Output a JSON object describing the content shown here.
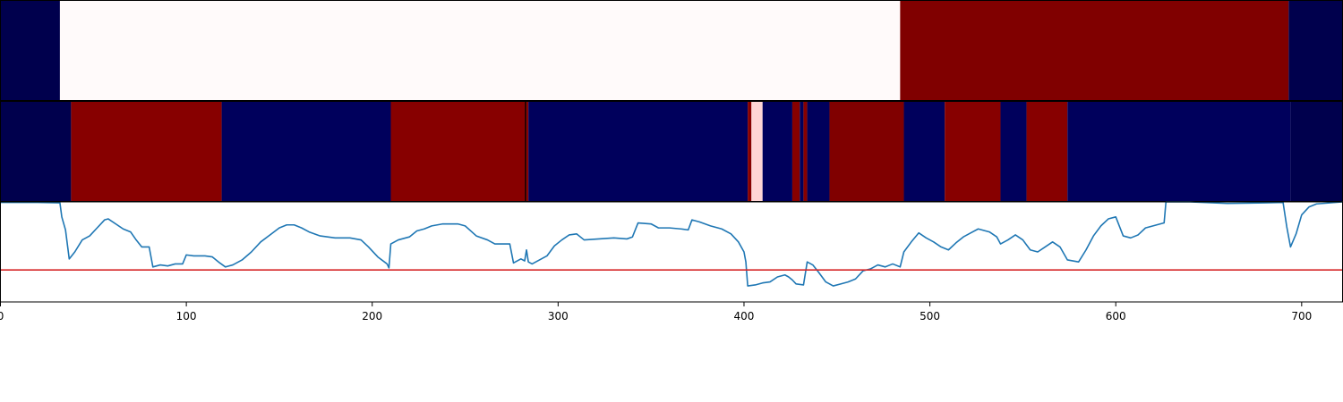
{
  "chart_data": [
    {
      "type": "heatmap",
      "xlim": [
        0,
        722
      ],
      "colormap": "seismic",
      "segments": [
        {
          "start": 0,
          "end": 32,
          "color": "#00004d"
        },
        {
          "start": 32,
          "end": 484,
          "color": "#fffafa"
        },
        {
          "start": 484,
          "end": 693,
          "color": "#800000"
        },
        {
          "start": 693,
          "end": 722,
          "color": "#00004d"
        }
      ]
    },
    {
      "type": "heatmap",
      "xlim": [
        0,
        722
      ],
      "colormap": "seismic",
      "segments": [
        {
          "start": 0,
          "end": 38,
          "color": "#00004d"
        },
        {
          "start": 38,
          "end": 119,
          "color": "#870000"
        },
        {
          "start": 119,
          "end": 210,
          "color": "#00005c"
        },
        {
          "start": 210,
          "end": 282,
          "color": "#870000"
        },
        {
          "start": 282,
          "end": 283,
          "color": "#2a0000"
        },
        {
          "start": 283,
          "end": 284,
          "color": "#870000"
        },
        {
          "start": 284,
          "end": 402,
          "color": "#00005c"
        },
        {
          "start": 402,
          "end": 404,
          "color": "#870000"
        },
        {
          "start": 404,
          "end": 410,
          "color": "#ffd5d5"
        },
        {
          "start": 410,
          "end": 426,
          "color": "#00005c"
        },
        {
          "start": 426,
          "end": 430,
          "color": "#870000"
        },
        {
          "start": 430,
          "end": 432,
          "color": "#00005c"
        },
        {
          "start": 432,
          "end": 434,
          "color": "#870000"
        },
        {
          "start": 434,
          "end": 446,
          "color": "#00005c"
        },
        {
          "start": 446,
          "end": 486,
          "color": "#800000"
        },
        {
          "start": 486,
          "end": 508,
          "color": "#00005c"
        },
        {
          "start": 508,
          "end": 538,
          "color": "#870000"
        },
        {
          "start": 538,
          "end": 552,
          "color": "#00005c"
        },
        {
          "start": 552,
          "end": 574,
          "color": "#870000"
        },
        {
          "start": 574,
          "end": 694,
          "color": "#00005c"
        },
        {
          "start": 694,
          "end": 722,
          "color": "#00004d"
        }
      ]
    },
    {
      "type": "line",
      "xlim": [
        0,
        722
      ],
      "x_ticks": [
        0,
        100,
        200,
        300,
        400,
        500,
        600,
        700
      ],
      "tick_labels": [
        "0",
        "100",
        "200",
        "300",
        "400",
        "500",
        "600",
        "700"
      ],
      "series": [
        {
          "color": "#1f77b4",
          "points": [
            [
              0,
              0.995
            ],
            [
              10,
              0.995
            ],
            [
              20,
              0.995
            ],
            [
              32,
              0.99
            ],
            [
              33,
              0.85
            ],
            [
              35,
              0.72
            ],
            [
              37,
              0.43
            ],
            [
              40,
              0.5
            ],
            [
              44,
              0.62
            ],
            [
              48,
              0.66
            ],
            [
              52,
              0.74
            ],
            [
              56,
              0.82
            ],
            [
              58,
              0.83
            ],
            [
              62,
              0.78
            ],
            [
              66,
              0.73
            ],
            [
              70,
              0.7
            ],
            [
              73,
              0.62
            ],
            [
              76,
              0.55
            ],
            [
              80,
              0.55
            ],
            [
              82,
              0.35
            ],
            [
              86,
              0.37
            ],
            [
              90,
              0.36
            ],
            [
              94,
              0.38
            ],
            [
              98,
              0.38
            ],
            [
              100,
              0.47
            ],
            [
              104,
              0.46
            ],
            [
              110,
              0.46
            ],
            [
              114,
              0.45
            ],
            [
              118,
              0.39
            ],
            [
              121,
              0.35
            ],
            [
              125,
              0.37
            ],
            [
              130,
              0.42
            ],
            [
              135,
              0.5
            ],
            [
              140,
              0.6
            ],
            [
              145,
              0.67
            ],
            [
              150,
              0.74
            ],
            [
              154,
              0.77
            ],
            [
              158,
              0.77
            ],
            [
              162,
              0.74
            ],
            [
              166,
              0.7
            ],
            [
              172,
              0.66
            ],
            [
              180,
              0.64
            ],
            [
              188,
              0.64
            ],
            [
              194,
              0.62
            ],
            [
              198,
              0.55
            ],
            [
              203,
              0.45
            ],
            [
              208,
              0.38
            ],
            [
              209,
              0.34
            ],
            [
              210,
              0.58
            ],
            [
              214,
              0.62
            ],
            [
              220,
              0.65
            ],
            [
              224,
              0.71
            ],
            [
              228,
              0.73
            ],
            [
              232,
              0.76
            ],
            [
              238,
              0.78
            ],
            [
              246,
              0.78
            ],
            [
              250,
              0.76
            ],
            [
              256,
              0.66
            ],
            [
              262,
              0.62
            ],
            [
              266,
              0.58
            ],
            [
              270,
              0.58
            ],
            [
              274,
              0.58
            ],
            [
              276,
              0.39
            ],
            [
              280,
              0.43
            ],
            [
              282,
              0.41
            ],
            [
              283,
              0.52
            ],
            [
              284,
              0.4
            ],
            [
              286,
              0.38
            ],
            [
              290,
              0.42
            ],
            [
              294,
              0.46
            ],
            [
              298,
              0.56
            ],
            [
              302,
              0.62
            ],
            [
              306,
              0.67
            ],
            [
              310,
              0.68
            ],
            [
              314,
              0.62
            ],
            [
              322,
              0.63
            ],
            [
              330,
              0.64
            ],
            [
              337,
              0.63
            ],
            [
              340,
              0.65
            ],
            [
              343,
              0.79
            ],
            [
              350,
              0.78
            ],
            [
              354,
              0.74
            ],
            [
              360,
              0.74
            ],
            [
              366,
              0.73
            ],
            [
              370,
              0.72
            ],
            [
              372,
              0.82
            ],
            [
              376,
              0.8
            ],
            [
              382,
              0.76
            ],
            [
              388,
              0.73
            ],
            [
              393,
              0.68
            ],
            [
              397,
              0.6
            ],
            [
              400,
              0.5
            ],
            [
              401,
              0.4
            ],
            [
              402,
              0.16
            ],
            [
              406,
              0.17
            ],
            [
              410,
              0.19
            ],
            [
              414,
              0.2
            ],
            [
              418,
              0.25
            ],
            [
              422,
              0.27
            ],
            [
              424,
              0.25
            ],
            [
              426,
              0.22
            ],
            [
              428,
              0.18
            ],
            [
              432,
              0.17
            ],
            [
              434,
              0.4
            ],
            [
              437,
              0.37
            ],
            [
              440,
              0.3
            ],
            [
              444,
              0.2
            ],
            [
              448,
              0.16
            ],
            [
              452,
              0.18
            ],
            [
              456,
              0.2
            ],
            [
              460,
              0.23
            ],
            [
              464,
              0.31
            ],
            [
              468,
              0.33
            ],
            [
              472,
              0.37
            ],
            [
              476,
              0.35
            ],
            [
              480,
              0.38
            ],
            [
              484,
              0.35
            ],
            [
              486,
              0.5
            ],
            [
              490,
              0.6
            ],
            [
              494,
              0.69
            ],
            [
              498,
              0.64
            ],
            [
              502,
              0.6
            ],
            [
              506,
              0.55
            ],
            [
              510,
              0.52
            ],
            [
              514,
              0.59
            ],
            [
              518,
              0.65
            ],
            [
              522,
              0.69
            ],
            [
              526,
              0.73
            ],
            [
              532,
              0.7
            ],
            [
              536,
              0.65
            ],
            [
              538,
              0.58
            ],
            [
              542,
              0.62
            ],
            [
              546,
              0.67
            ],
            [
              550,
              0.62
            ],
            [
              554,
              0.52
            ],
            [
              558,
              0.5
            ],
            [
              562,
              0.55
            ],
            [
              566,
              0.6
            ],
            [
              570,
              0.55
            ],
            [
              574,
              0.42
            ],
            [
              580,
              0.4
            ],
            [
              584,
              0.52
            ],
            [
              588,
              0.66
            ],
            [
              592,
              0.76
            ],
            [
              596,
              0.83
            ],
            [
              600,
              0.85
            ],
            [
              604,
              0.66
            ],
            [
              608,
              0.64
            ],
            [
              612,
              0.67
            ],
            [
              616,
              0.74
            ],
            [
              622,
              0.77
            ],
            [
              626,
              0.79
            ],
            [
              627,
              1.0
            ],
            [
              640,
              1.0
            ],
            [
              660,
              0.985
            ],
            [
              680,
              0.99
            ],
            [
              690,
              0.995
            ],
            [
              692,
              0.75
            ],
            [
              694,
              0.55
            ],
            [
              697,
              0.68
            ],
            [
              700,
              0.87
            ],
            [
              704,
              0.95
            ],
            [
              708,
              0.98
            ],
            [
              715,
              0.99
            ],
            [
              722,
              1.0
            ]
          ]
        }
      ],
      "reference_lines": [
        {
          "y": 0.32,
          "color": "#d62728"
        }
      ]
    }
  ]
}
